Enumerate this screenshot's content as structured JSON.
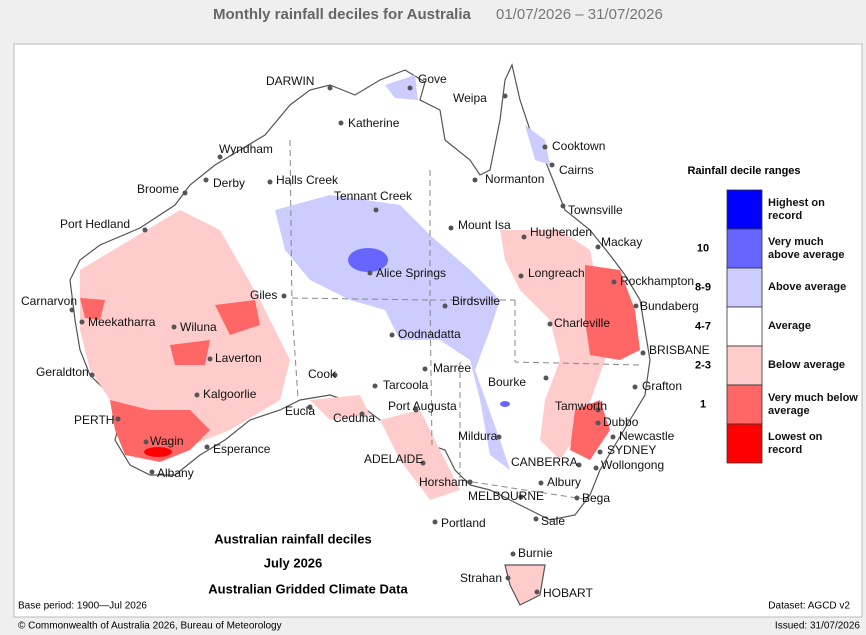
{
  "header": {
    "title": "Monthly rainfall deciles for Australia",
    "period": "01/07/2026 – 31/07/2026"
  },
  "map": {
    "places": [
      "DARWIN",
      "Gove",
      "Weipa",
      "Katherine",
      "Cooktown",
      "Wyndham",
      "Cairns",
      "Normanton",
      "Broome",
      "Derby",
      "Halls Creek",
      "Tennant Creek",
      "Townsville",
      "Port Hedland",
      "Mount Isa",
      "Hughenden",
      "Mackay",
      "Longreach",
      "Alice Springs",
      "Rockhampton",
      "Giles",
      "Carnarvon",
      "Birdsville",
      "Bundaberg",
      "Meekatharra",
      "Wiluna",
      "Charleville",
      "Oodnadatta",
      "BRISBANE",
      "Laverton",
      "Geraldton",
      "Cook",
      "Marree",
      "Grafton",
      "Tarcoola",
      "Bourke",
      "Kalgoorlie",
      "Port Augusta",
      "Eucla",
      "Ceduna",
      "PERTH",
      "Tamworth",
      "Mildura",
      "Newcastle",
      "Wagin",
      "Dubbo",
      "Esperance",
      "SYDNEY",
      "ADELAIDE",
      "CANBERRA",
      "Wollongong",
      "Albany",
      "Albury",
      "Horsham",
      "MELBOURNE",
      "Bega",
      "Portland",
      "Sale",
      "Burnie",
      "Strahan",
      "HOBART"
    ],
    "caption": [
      "Australian rainfall deciles",
      "July 2026",
      "Australian Gridded Climate Data"
    ],
    "base_period": "Base period: 1900—Jul 2026",
    "dataset": "Dataset: AGCD v2"
  },
  "legend": {
    "title": "Rainfall decile ranges",
    "items": [
      {
        "label": "Highest on record",
        "color": "#0000ff"
      },
      {
        "label": "Very much above average",
        "color": "#6666ff"
      },
      {
        "label": "Above average",
        "color": "#ccccff"
      },
      {
        "label": "Average",
        "color": "#ffffff"
      },
      {
        "label": "Below average",
        "color": "#ffcccc"
      },
      {
        "label": "Very much below average",
        "color": "#ff6666"
      },
      {
        "label": "Lowest on record",
        "color": "#ff0000"
      }
    ],
    "deciles": [
      "10",
      "8-9",
      "4-7",
      "2-3",
      "1"
    ]
  },
  "footer": {
    "copyright": "© Commonwealth of Australia 2026, Bureau of Meteorology",
    "issued": "Issued: 31/07/2026"
  }
}
